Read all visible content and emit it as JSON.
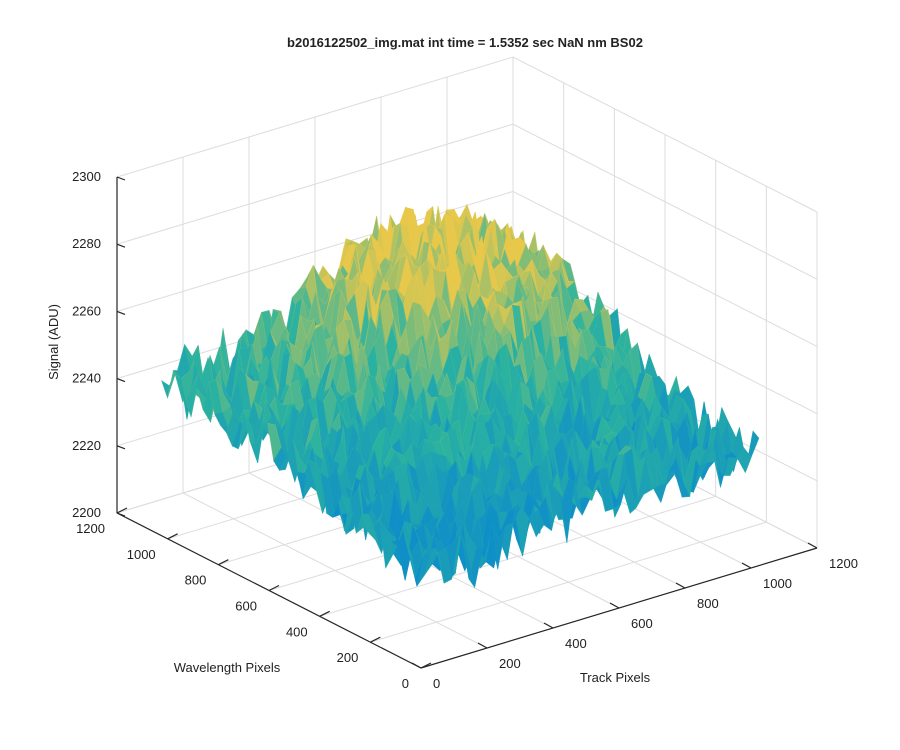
{
  "chart_data": {
    "type": "surface",
    "title": "b2016122502_img.mat int time = 1.5352 sec  NaN nm BS02",
    "xlabel": "Track Pixels",
    "ylabel": "Wavelength Pixels",
    "zlabel": "Signal (ADU)",
    "x_ticks": [
      "0",
      "200",
      "400",
      "600",
      "800",
      "1000",
      "1200"
    ],
    "y_ticks": [
      "0",
      "200",
      "400",
      "600",
      "800",
      "1000",
      "1200"
    ],
    "z_ticks": [
      "2200",
      "2220",
      "2240",
      "2260",
      "2280",
      "2300"
    ],
    "xlim": [
      0,
      1200
    ],
    "ylim": [
      0,
      1200
    ],
    "zlim": [
      2200,
      2300
    ],
    "grid": true,
    "colormap": "parula",
    "color_low": "#0f8fc8",
    "color_mid": "#2bb3a0",
    "color_high": "#e8c84a",
    "data_extent": {
      "track_pixels": [
        0,
        1024
      ],
      "wavelength_pixels": [
        0,
        1024
      ]
    },
    "surface_profile": {
      "description_free": true,
      "corner_values": {
        "x0_y0": 2238,
        "x1024_y0": 2232,
        "x0_y1024": 2245,
        "x1024_y1024": 2250
      },
      "peak": {
        "x": 700,
        "y": 850,
        "z": 2272
      },
      "trough": {
        "x": 100,
        "y": 80,
        "z": 2228
      },
      "noise_amplitude": 18
    }
  }
}
